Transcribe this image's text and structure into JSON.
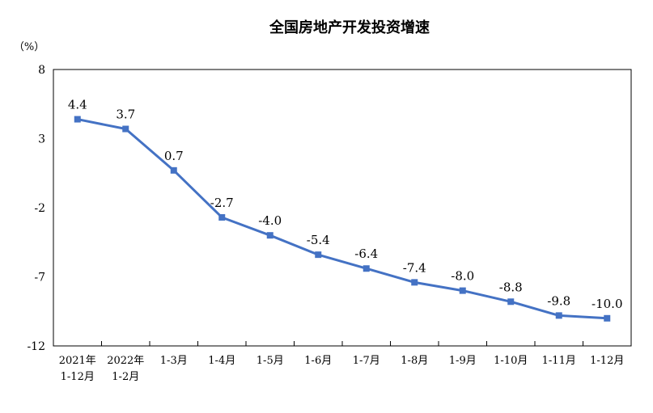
{
  "chart_data": {
    "type": "line",
    "title": "全国房地产开发投资增速",
    "unit_label": "（%）",
    "ylim": [
      -12,
      8
    ],
    "yticks": [
      8,
      3,
      -2,
      -7,
      -12
    ],
    "grid": false,
    "legend": "none",
    "line_color": "#4472c4",
    "categories": [
      [
        "2021年",
        "1-12月"
      ],
      [
        "2022年",
        "1-2月"
      ],
      [
        "1-3月"
      ],
      [
        "1-4月"
      ],
      [
        "1-5月"
      ],
      [
        "1-6月"
      ],
      [
        "1-7月"
      ],
      [
        "1-8月"
      ],
      [
        "1-9月"
      ],
      [
        "1-10月"
      ],
      [
        "1-11月"
      ],
      [
        "1-12月"
      ]
    ],
    "values": [
      4.4,
      3.7,
      0.7,
      -2.7,
      -4.0,
      -5.4,
      -6.4,
      -7.4,
      -8.0,
      -8.8,
      -9.8,
      -10.0
    ],
    "value_labels": [
      "4.4",
      "3.7",
      "0.7",
      "-2.7",
      "-4.0",
      "-5.4",
      "-6.4",
      "-7.4",
      "-8.0",
      "-8.8",
      "-9.8",
      "-10.0"
    ]
  }
}
